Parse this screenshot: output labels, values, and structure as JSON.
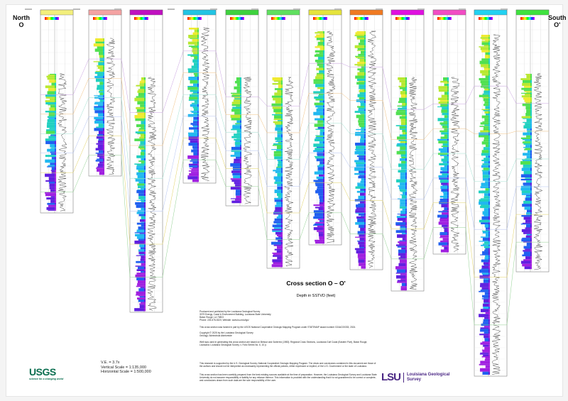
{
  "section": {
    "left_end": "North\nO",
    "right_end": "South\nO'",
    "title": "Cross section O – O'",
    "subtitle": "Depth in SSTVD (feet)"
  },
  "notes": {
    "producer": "Produced and published by the Louisiana Geological Survey\n3079 Energy, Coast & Environment Building, Louisiana State University\nBaton Rouge, LA 70803\nPhone: 225-578-5320; Website: www.lsu.edu/lgs/",
    "funding": "This cross section was funded in part by the USGS National Cooperative Geologic Mapping Program under STATEMAP award number G24AC00333, 2024.",
    "copyright": "Copyright © 2025 by the Louisiana Geological Survey\nGeology: Akinbobola Akintomide",
    "source": "Well tops used in generating this cross section are based on Bebout and Gutierrez (1983): Regional Cross Sections, Louisiana Gulf Coast (Eastern Part), Baton Rouge, Louisiana: Louisiana Geological Survey, v. Folio Series No. 6, 10 p.",
    "disclaimer1": "This research is supported by the U.S. Geological Survey, National Cooperative Geologic Mapping Program. The views and conclusions contained in this document are those of the authors and should not be interpreted as necessarily representing the official policies, either expressed or implied, of the U.S. Government or the state of Louisiana.",
    "disclaimer2": "This cross section has been carefully prepared from the best existing sources available at the time of preparation. However, the Louisiana Geological Survey and Louisiana State University do not assume responsibility or liability for any reliance thereon. This information is provided with the understanding that it is not guaranteed to be correct or complete, and conclusions drawn from such data are the sole responsibility of the user."
  },
  "scale": {
    "ve": "V.E. = 3.7x",
    "vertical": "Vertical Scale = 1:135,000",
    "horizontal": "Horizontal Scale = 1:500,000"
  },
  "logos": {
    "usgs": "USGS",
    "usgs_tagline": "science for a changing world",
    "lsu": "LSU",
    "lgs_line1": "Louisiana Geological",
    "lgs_line2": "Survey"
  },
  "wells": [
    {
      "header_color": "#f3ef7c"
    },
    {
      "header_color": "#f4a3a3"
    },
    {
      "header_color": "#c010c0"
    },
    {
      "header_color": "#22c4e4"
    },
    {
      "header_color": "#3ed23e"
    },
    {
      "header_color": "#5fe05f"
    },
    {
      "header_color": "#e6e43c"
    },
    {
      "header_color": "#f07a22"
    },
    {
      "header_color": "#e010e0"
    },
    {
      "header_color": "#f24cc4"
    },
    {
      "header_color": "#22d2f2"
    },
    {
      "header_color": "#3ee23e"
    }
  ]
}
